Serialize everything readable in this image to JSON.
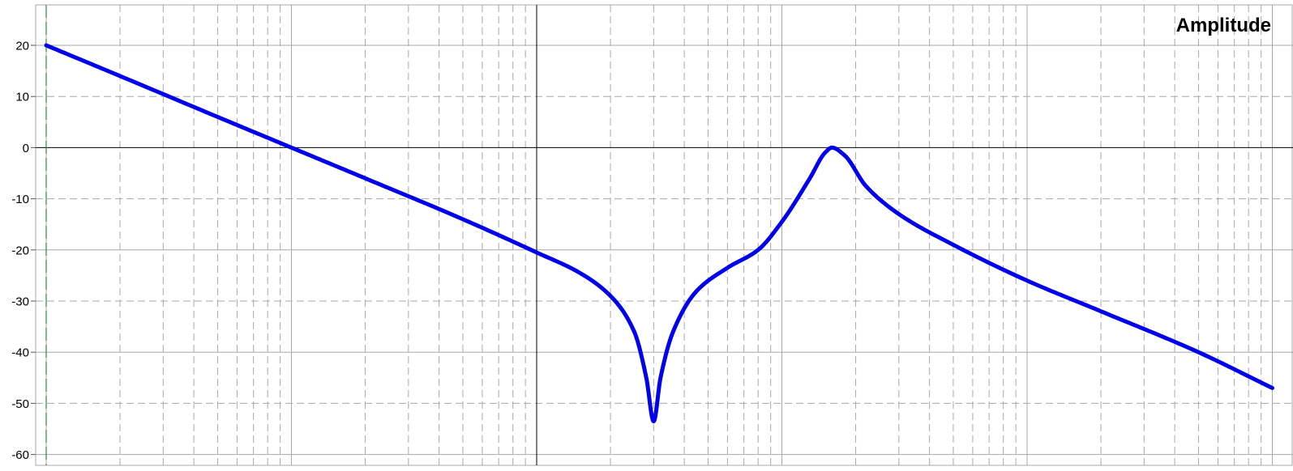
{
  "chart_data": {
    "type": "line",
    "title": "Amplitude",
    "xlabel": "",
    "ylabel": "",
    "x_scale": "log",
    "x_decades": [
      0.01,
      0.1,
      1,
      10,
      100,
      1000
    ],
    "x_range": [
      0.01,
      1000
    ],
    "ylim": [
      -60,
      20
    ],
    "y_ticks": [
      20,
      10,
      0,
      -10,
      -20,
      -30,
      -40,
      -50,
      -60
    ],
    "grid": true,
    "grid_style": "solid at decades and 10 dB steps, dashed at minor divisions",
    "legend": "none",
    "colors": {
      "series": "#0000ee",
      "axis": "#000000",
      "major_grid": "#a8a8a8",
      "minor_grid": "#a8a8a8",
      "left_marker": "#2e8b2e"
    },
    "series": [
      {
        "values_db": [
          [
            0.01,
            20
          ],
          [
            0.02,
            14
          ],
          [
            0.05,
            6
          ],
          [
            0.1,
            0
          ],
          [
            0.2,
            -6
          ],
          [
            0.5,
            -14
          ],
          [
            1,
            -20.5
          ],
          [
            1.5,
            -24.5
          ],
          [
            2,
            -29
          ],
          [
            2.5,
            -36
          ],
          [
            2.8,
            -45
          ],
          [
            3.0,
            -53.5
          ],
          [
            3.2,
            -45
          ],
          [
            3.6,
            -36
          ],
          [
            4.5,
            -28
          ],
          [
            6,
            -23.5
          ],
          [
            8,
            -20
          ],
          [
            10,
            -14.5
          ],
          [
            13,
            -6
          ],
          [
            15,
            -1
          ],
          [
            16,
            0
          ],
          [
            18,
            -1.5
          ],
          [
            22,
            -7.5
          ],
          [
            30,
            -13
          ],
          [
            50,
            -19
          ],
          [
            100,
            -26
          ],
          [
            200,
            -32
          ],
          [
            500,
            -40
          ],
          [
            1000,
            -47
          ]
        ]
      }
    ]
  }
}
